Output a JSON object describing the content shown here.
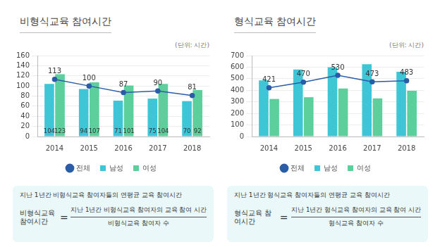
{
  "chart_data": [
    {
      "type": "bar",
      "title": "비형식교육 참여시간",
      "subtitle": "(단위: 시간)",
      "categories": [
        "2014",
        "2015",
        "2016",
        "2017",
        "2018"
      ],
      "series": [
        {
          "name": "남성",
          "color": "#3ec6d6",
          "values": [
            104,
            94,
            71,
            75,
            70
          ],
          "data_labels": true
        },
        {
          "name": "여성",
          "color": "#5ccf9c",
          "values": [
            123,
            107,
            101,
            104,
            92
          ],
          "data_labels": true
        },
        {
          "name": "전체",
          "type": "line",
          "color": "#2a5caa",
          "marker": "circle",
          "values": [
            113,
            100,
            87,
            90,
            81
          ],
          "data_labels": true
        }
      ],
      "ylim": [
        0,
        160
      ],
      "yticks": [
        0,
        20,
        40,
        60,
        80,
        100,
        120,
        140,
        160
      ],
      "grid": true,
      "legend": "bottom"
    },
    {
      "type": "bar",
      "title": "형식교육 참여시간",
      "subtitle": "(단위: 시간)",
      "categories": [
        "2014",
        "2015",
        "2016",
        "2017",
        "2018"
      ],
      "series": [
        {
          "name": "남성",
          "color": "#3ec6d6",
          "values": [
            485,
            580,
            600,
            625,
            560
          ]
        },
        {
          "name": "여성",
          "color": "#5ccf9c",
          "values": [
            325,
            340,
            415,
            330,
            395
          ]
        },
        {
          "name": "전체",
          "type": "line",
          "color": "#2a5caa",
          "marker": "circle",
          "values": [
            421,
            470,
            530,
            473,
            483
          ],
          "data_labels": true
        }
      ],
      "ylim": [
        0,
        700
      ],
      "yticks": [
        0,
        100,
        200,
        300,
        400,
        500,
        600,
        700
      ],
      "grid": true,
      "legend": "bottom"
    }
  ],
  "formulas": [
    {
      "caption": "지난 1년간 비형식교육 참여자들의 연평균 교육 참여시간",
      "term": "비형식교육 참여시간",
      "equals": "=",
      "numerator": "지난 1년간 비형식교육 참여자의 교육 참여 시간",
      "denominator": "비형식교육 참여자 수"
    },
    {
      "caption": "지난 1년간 형식교육 참여자들의 연평균 교육 참여시간",
      "term": "형식교육 참여시간",
      "equals": "=",
      "numerator": "지난 1년간 형식교육 참여자의 교육 참여 시간",
      "denominator": "형식교육 참여자 수"
    }
  ]
}
